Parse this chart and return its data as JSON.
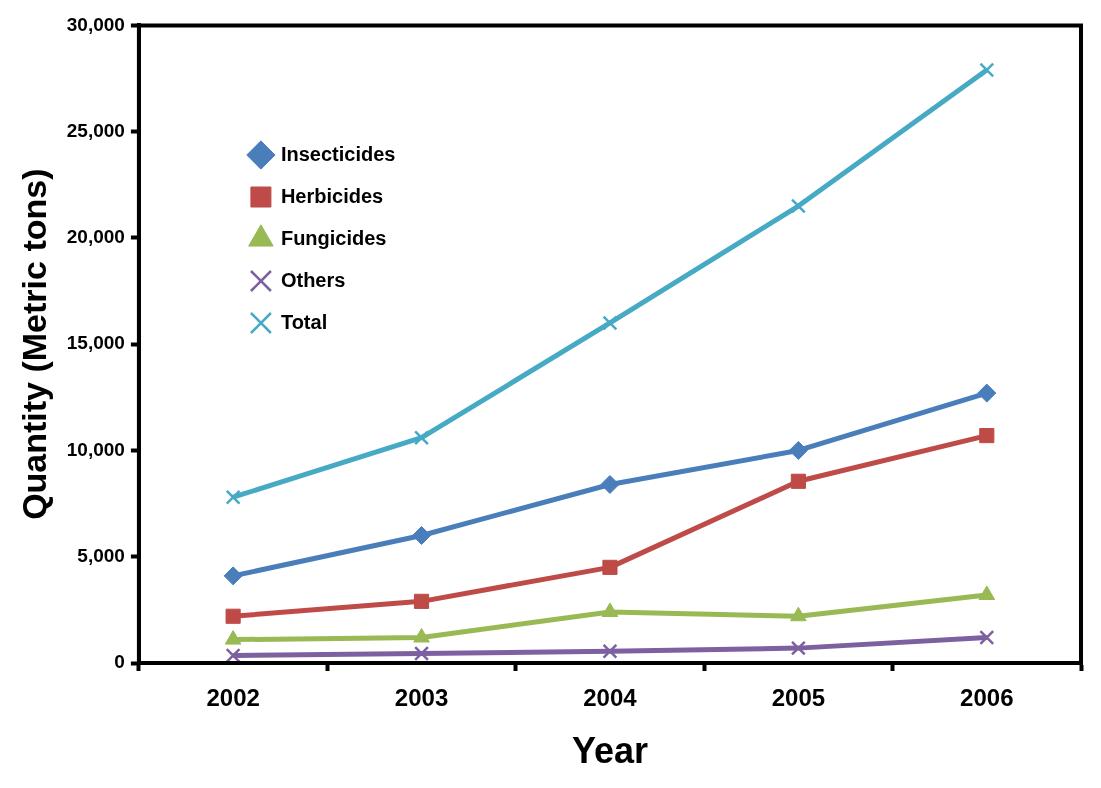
{
  "chart_data": {
    "type": "line",
    "xlabel": "Year",
    "ylabel": "Quantity (Metric tons)",
    "categories": [
      "2002",
      "2003",
      "2004",
      "2005",
      "2006"
    ],
    "series": [
      {
        "name": "Insecticides",
        "color": "#4a7ebb",
        "marker": "diamond",
        "values": [
          4100,
          6000,
          8400,
          10000,
          12700
        ]
      },
      {
        "name": "Herbicides",
        "color": "#be4b48",
        "marker": "square",
        "values": [
          2200,
          2900,
          4500,
          8550,
          10700
        ]
      },
      {
        "name": "Fungicides",
        "color": "#98b954",
        "marker": "triangle",
        "values": [
          1100,
          1200,
          2400,
          2200,
          3200
        ]
      },
      {
        "name": "Others",
        "color": "#7d60a0",
        "marker": "cross",
        "values": [
          350,
          450,
          550,
          700,
          1200
        ]
      },
      {
        "name": "Total",
        "color": "#46aac5",
        "marker": "cross",
        "values": [
          7800,
          10600,
          16000,
          21500,
          27900
        ]
      }
    ],
    "ylim": [
      0,
      30000
    ],
    "yticks": [
      {
        "value": 0,
        "label": "0"
      },
      {
        "value": 5000,
        "label": "5,000"
      },
      {
        "value": 10000,
        "label": "10,000"
      },
      {
        "value": 15000,
        "label": "15,000"
      },
      {
        "value": 20000,
        "label": "20,000"
      },
      {
        "value": 25000,
        "label": "25,000"
      },
      {
        "value": 30000,
        "label": "30,000"
      }
    ],
    "grid": false,
    "legend": "top left",
    "line_style": "solid"
  }
}
